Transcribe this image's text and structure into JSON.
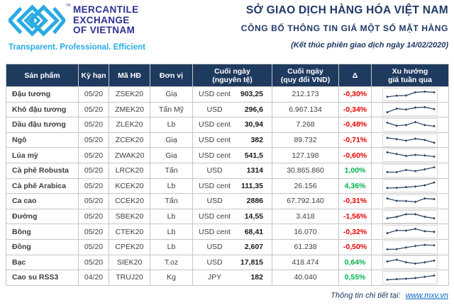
{
  "brand": {
    "logo_text_lines": [
      "MERCANTILE",
      "EXCHANGE",
      "OF VIETNAM"
    ],
    "trademark": "™",
    "tagline": "Transparent. Professional. Efficient"
  },
  "header": {
    "title": "SỞ GIAO DỊCH HÀNG HÓA VIỆT NAM",
    "subtitle": "CÔNG BỐ THÔNG TIN GIÁ MỘT SỐ MẶT HÀNG",
    "session_note": "(Kết thúc phiên giao dịch ngày 14/02/2020)"
  },
  "colors": {
    "navy_header": "#1f3a5f",
    "title_navy": "#1f3864",
    "brand_blue": "#29abe2",
    "brand_indigo": "#2e3192",
    "delta_up": "#00b050",
    "delta_down": "#e80000",
    "spark_line": "#243f60",
    "grid_border": "#c6c6c6"
  },
  "table": {
    "columns": [
      {
        "line1": "Sản phẩm"
      },
      {
        "line1": "Kỳ hạn"
      },
      {
        "line1": "Mã HĐ"
      },
      {
        "line1": "Đơn vị"
      },
      {
        "line1": "Cuối ngày",
        "line2": "(nguyên tệ)"
      },
      {
        "line1": "Cuối ngày",
        "line2": "(quy đổi VND)"
      },
      {
        "line1": "Δ"
      },
      {
        "line1": "Xu hướng",
        "line2": "giá tuần qua"
      }
    ],
    "rows": [
      {
        "product": "Đậu tương",
        "term": "05/20",
        "code": "ZSEK20",
        "unit": "Giạ",
        "currency": "USD cent",
        "close_native": "903,25",
        "close_vnd": "212.173",
        "delta": "-0,30%",
        "trend": [
          0.9,
          1.4,
          1.5,
          3.0,
          3.3,
          3.0
        ]
      },
      {
        "product": "Khô đậu tương",
        "term": "05/20",
        "code": "ZMEK20",
        "unit": "Tấn Mỹ",
        "currency": "USD",
        "close_native": "296,6",
        "close_vnd": "6.967.134",
        "delta": "-0,34%",
        "trend": [
          0.6,
          2.3,
          1.9,
          2.8,
          3.0,
          2.1
        ]
      },
      {
        "product": "Dầu đậu tương",
        "term": "05/20",
        "code": "ZLEK20",
        "unit": "Lb",
        "currency": "USD cent",
        "close_native": "30,94",
        "close_vnd": "7.268",
        "delta": "-0,48%",
        "trend": [
          3.0,
          1.6,
          1.9,
          3.3,
          1.9,
          1.4
        ]
      },
      {
        "product": "Ngô",
        "term": "05/20",
        "code": "ZCEK20",
        "unit": "Giạ",
        "currency": "USD cent",
        "close_native": "382",
        "close_vnd": "89.732",
        "delta": "-0,71%",
        "trend": [
          3.2,
          2.6,
          1.9,
          2.8,
          2.2,
          0.9
        ]
      },
      {
        "product": "Lúa mỳ",
        "term": "05/20",
        "code": "ZWAK20",
        "unit": "Giạ",
        "currency": "USD cent",
        "close_native": "541,5",
        "close_vnd": "127.198",
        "delta": "-0,60%",
        "trend": [
          3.4,
          2.6,
          1.7,
          2.2,
          1.9,
          1.4
        ]
      },
      {
        "product": "Cà phê Robusta",
        "term": "05/20",
        "code": "LRCK20",
        "unit": "Tấn",
        "currency": "USD",
        "close_native": "1314",
        "close_vnd": "30.865.860",
        "delta": "1,00%",
        "trend": [
          1.4,
          1.4,
          2.4,
          1.9,
          2.7,
          3.7
        ]
      },
      {
        "product": "Cà phê Arabica",
        "term": "05/20",
        "code": "KCEK20",
        "unit": "Lb",
        "currency": "USD cent",
        "close_native": "111,35",
        "close_vnd": "26.156",
        "delta": "4,36%",
        "trend": [
          0.9,
          1.0,
          1.3,
          1.6,
          2.2,
          3.5
        ]
      },
      {
        "product": "Ca cao",
        "term": "05/20",
        "code": "CCEK20",
        "unit": "Tấn",
        "currency": "USD",
        "close_native": "2886",
        "close_vnd": "67.792.140",
        "delta": "-0,31%",
        "trend": [
          3.3,
          2.2,
          2.1,
          1.7,
          3.3,
          3.0
        ]
      },
      {
        "product": "Đường",
        "term": "05/20",
        "code": "SBEK20",
        "unit": "Lb",
        "currency": "USD cent",
        "close_native": "14,55",
        "close_vnd": "3.418",
        "delta": "-1,56%",
        "trend": [
          1.3,
          2.0,
          3.2,
          3.2,
          2.0,
          1.3
        ]
      },
      {
        "product": "Bông",
        "term": "05/20",
        "code": "CTEK20",
        "unit": "Lb",
        "currency": "USD cent",
        "close_native": "68,41",
        "close_vnd": "16.070",
        "delta": "-0,32%",
        "trend": [
          1.3,
          2.6,
          2.5,
          3.3,
          2.2,
          1.9
        ]
      },
      {
        "product": "Đồng",
        "term": "05/20",
        "code": "CPEK20",
        "unit": "Lb",
        "currency": "USD",
        "close_native": "2,607",
        "close_vnd": "61.238",
        "delta": "-0,50%",
        "trend": [
          1.0,
          1.1,
          1.9,
          2.6,
          3.1,
          2.9
        ]
      },
      {
        "product": "Bạc",
        "term": "05/20",
        "code": "SIEK20",
        "unit": "T.oz",
        "currency": "USD",
        "close_native": "17,815",
        "close_vnd": "418.474",
        "delta": "0,64%",
        "trend": [
          2.3,
          3.1,
          1.9,
          1.3,
          1.9,
          2.7
        ]
      },
      {
        "product": "Cao su RSS3",
        "term": "04/20",
        "code": "TRUJ20",
        "unit": "Kg",
        "currency": "JPY",
        "close_native": "182",
        "close_vnd": "40.040",
        "delta": "0,55%",
        "trend": [
          1.0,
          1.3,
          1.5,
          1.8,
          2.4,
          3.0
        ]
      }
    ]
  },
  "footer": {
    "note": "Thông tin chi tiết tại:",
    "link": "www.mxv.vn"
  }
}
